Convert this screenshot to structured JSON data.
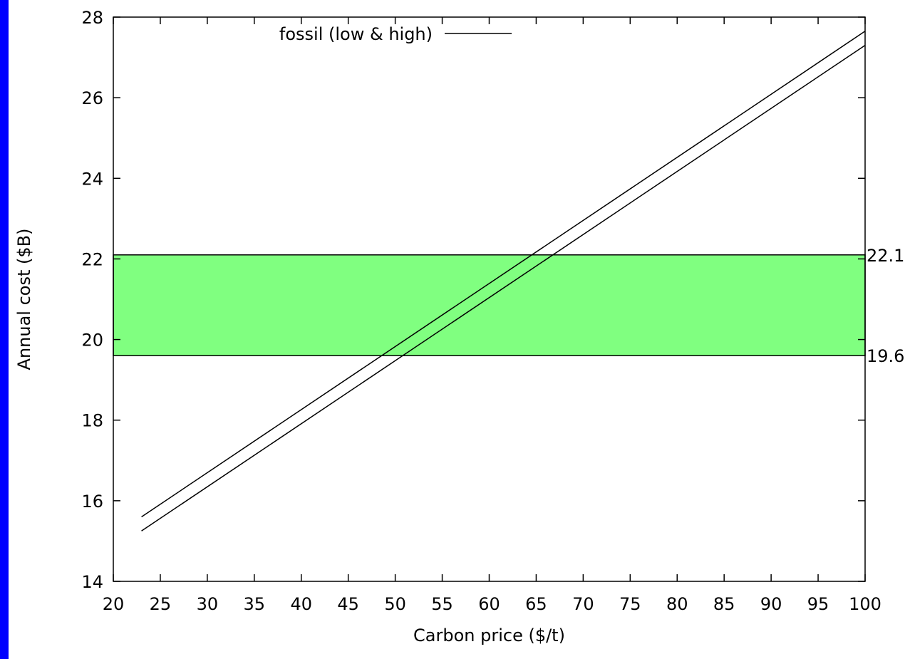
{
  "colors": {
    "background": "#0000ff",
    "plot_background": "#ffffff",
    "band_fill": "#80ff80",
    "line": "#000000"
  },
  "chart_data": {
    "type": "line",
    "xlabel": "Carbon price ($/t)",
    "ylabel": "Annual cost ($B)",
    "xlim": [
      20,
      100
    ],
    "ylim": [
      14,
      28
    ],
    "xticks": [
      20,
      25,
      30,
      35,
      40,
      45,
      50,
      55,
      60,
      65,
      70,
      75,
      80,
      85,
      90,
      95,
      100
    ],
    "yticks": [
      14,
      16,
      18,
      20,
      22,
      24,
      26,
      28
    ],
    "grid": false,
    "legend": {
      "position": "top",
      "entries": [
        "fossil (low & high)"
      ]
    },
    "series": [
      {
        "name": "fossil (low & high)",
        "x": [
          23,
          100
        ],
        "y": [
          15.6,
          27.65
        ]
      },
      {
        "x": [
          23,
          100
        ],
        "y": [
          15.25,
          27.3
        ]
      }
    ],
    "band": {
      "low": 19.6,
      "high": 22.1,
      "fill": "#80ff80"
    },
    "band_labels": [
      "22.1",
      "19.6"
    ]
  }
}
